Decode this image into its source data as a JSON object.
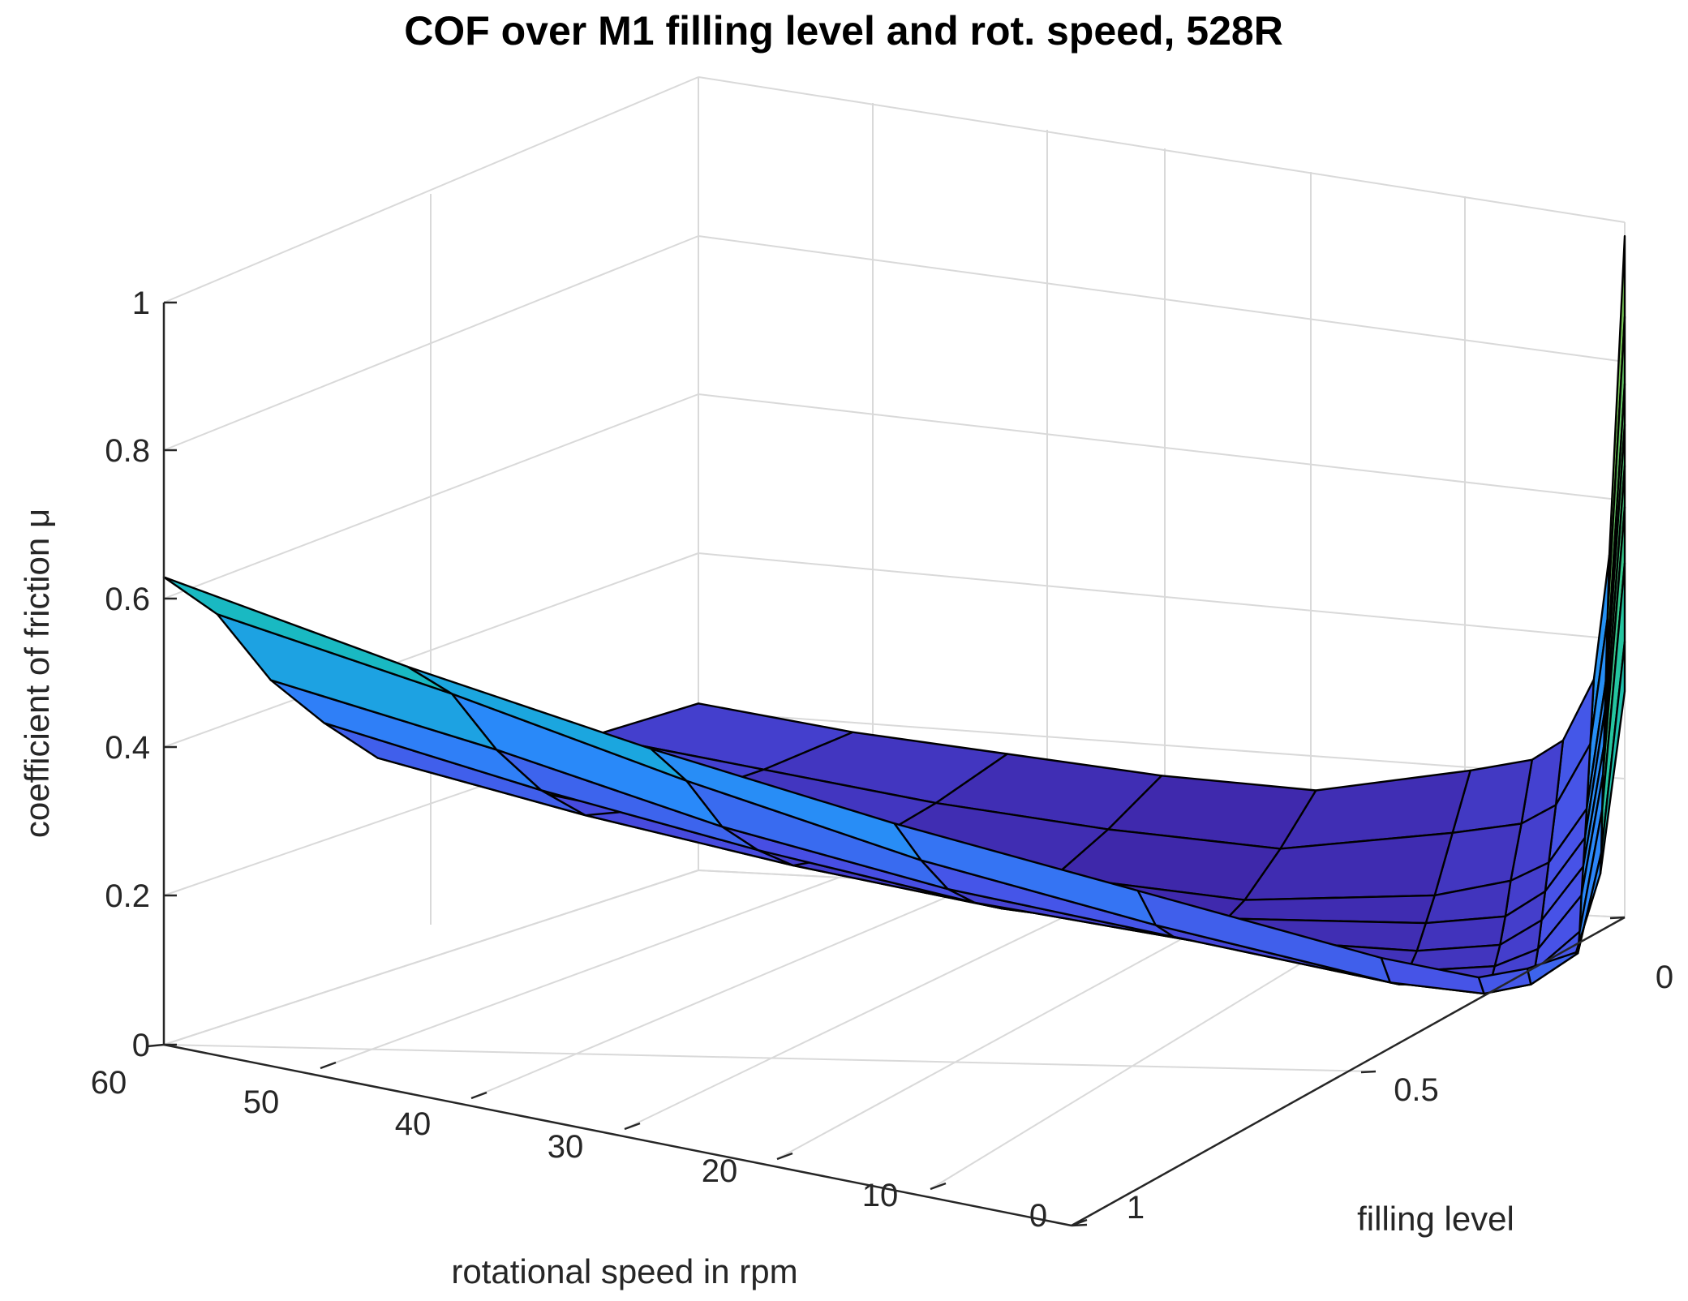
{
  "chart_data": {
    "type": "surface",
    "title": "COF over M1 filling level and rot. speed, 528R",
    "xlabel": "rotational speed in rpm",
    "ylabel": "filling level",
    "zlabel": "coefficient of friction μ",
    "xlim": [
      0,
      60
    ],
    "ylim": [
      0,
      1
    ],
    "zlim": [
      0,
      1
    ],
    "x_ticks": [
      "0",
      "10",
      "20",
      "30",
      "40",
      "50",
      "60"
    ],
    "y_ticks": [
      "0",
      "0.5",
      "1"
    ],
    "z_ticks": [
      "0",
      "0.2",
      "0.4",
      "0.6",
      "0.8",
      "1"
    ],
    "grid": true,
    "colormap": "parula",
    "rotational_speed_rpm": [
      0,
      1,
      2,
      4,
      6,
      10,
      20,
      30,
      40,
      50,
      60
    ],
    "filling_level": [
      0,
      0.2,
      0.4,
      0.5,
      0.6,
      0.7,
      0.8,
      0.9,
      1.0
    ],
    "cof": [
      [
        0.98,
        0.52,
        0.34,
        0.25,
        0.22,
        0.2,
        0.16,
        0.17,
        0.19,
        0.21,
        0.24
      ],
      [
        0.94,
        0.51,
        0.33,
        0.24,
        0.21,
        0.19,
        0.15,
        0.16,
        0.18,
        0.21,
        0.24
      ],
      [
        0.92,
        0.5,
        0.32,
        0.24,
        0.21,
        0.18,
        0.15,
        0.16,
        0.18,
        0.22,
        0.25
      ],
      [
        0.9,
        0.5,
        0.32,
        0.24,
        0.2,
        0.18,
        0.16,
        0.17,
        0.19,
        0.23,
        0.26
      ],
      [
        0.88,
        0.49,
        0.32,
        0.24,
        0.2,
        0.18,
        0.17,
        0.18,
        0.21,
        0.25,
        0.3
      ],
      [
        0.86,
        0.49,
        0.32,
        0.24,
        0.21,
        0.19,
        0.2,
        0.22,
        0.26,
        0.31,
        0.37
      ],
      [
        0.82,
        0.48,
        0.31,
        0.25,
        0.22,
        0.21,
        0.24,
        0.27,
        0.32,
        0.39,
        0.45
      ],
      [
        0.75,
        0.46,
        0.32,
        0.27,
        0.25,
        0.25,
        0.29,
        0.34,
        0.41,
        0.49,
        0.56
      ],
      [
        0.72,
        0.47,
        0.36,
        0.33,
        0.31,
        0.32,
        0.37,
        0.42,
        0.48,
        0.55,
        0.63
      ]
    ]
  }
}
